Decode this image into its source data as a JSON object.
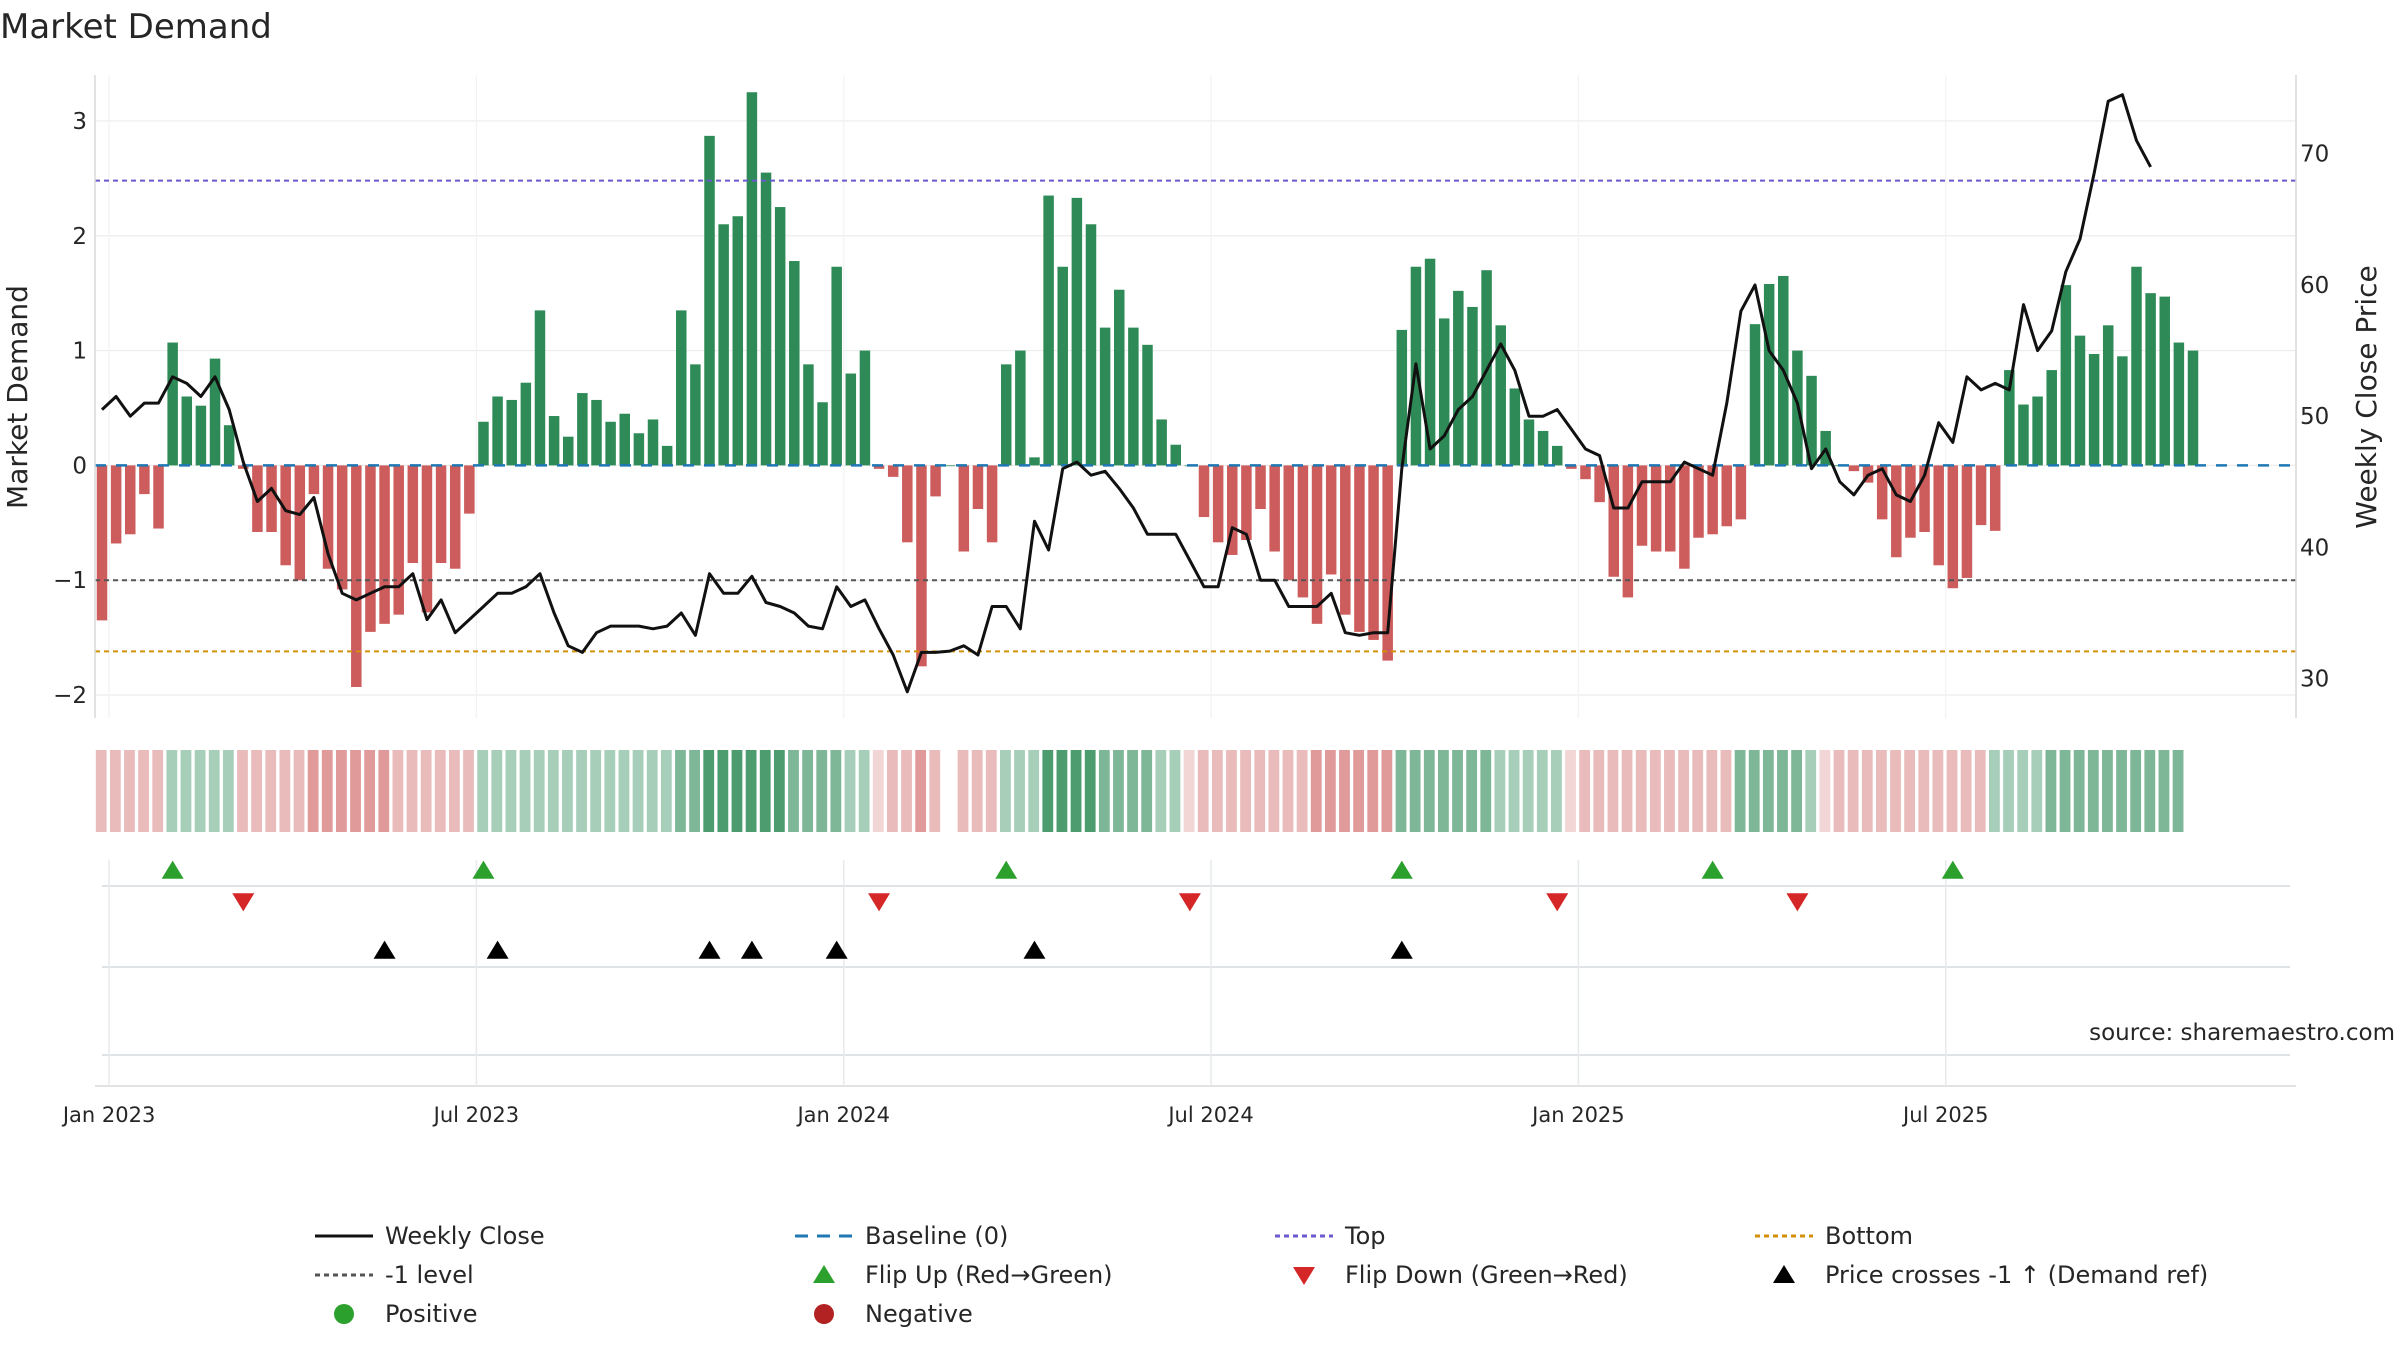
{
  "chart_data": {
    "type": "bar",
    "title": "Market Demand",
    "ylabel_left": "Market Demand",
    "ylabel_right": "Weekly Close Price",
    "ylim_left": [
      -2.2,
      3.4
    ],
    "ylim_right": [
      27,
      76
    ],
    "yticks_left": [
      -2,
      -1,
      0,
      1,
      2,
      3
    ],
    "yticks_right": [
      30,
      40,
      50,
      60,
      70
    ],
    "x_ticks": [
      "Jan 2023",
      "Jul 2023",
      "Jan 2024",
      "Jul 2024",
      "Jan 2025",
      "Jul 2025"
    ],
    "reference_lines": {
      "top": 2.48,
      "minus_one": -1,
      "bottom": -1.62,
      "baseline": 0
    },
    "demand": [
      -1.35,
      -0.68,
      -0.6,
      -0.25,
      -0.55,
      1.07,
      0.6,
      0.52,
      0.93,
      0.35,
      -0.03,
      -0.58,
      -0.58,
      -0.87,
      -1.0,
      -0.25,
      -0.9,
      -1.08,
      -1.93,
      -1.45,
      -1.38,
      -1.3,
      -0.85,
      -1.28,
      -0.85,
      -0.9,
      -0.42,
      0.38,
      0.6,
      0.57,
      0.72,
      1.35,
      0.43,
      0.25,
      0.63,
      0.57,
      0.38,
      0.45,
      0.28,
      0.4,
      0.17,
      1.35,
      0.88,
      2.87,
      2.1,
      2.17,
      3.25,
      2.55,
      2.25,
      1.78,
      0.88,
      0.55,
      1.73,
      0.8,
      1.0,
      -0.03,
      -0.1,
      -0.67,
      -1.75,
      -0.27,
      0.0,
      -0.75,
      -0.38,
      -0.67,
      0.88,
      1.0,
      0.07,
      2.35,
      1.73,
      2.33,
      2.1,
      1.2,
      1.53,
      1.2,
      1.05,
      0.4,
      0.18,
      0.0,
      -0.45,
      -0.67,
      -0.78,
      -0.65,
      -0.38,
      -0.75,
      -1.0,
      -1.15,
      -1.38,
      -0.95,
      -1.3,
      -1.45,
      -1.52,
      -1.7,
      1.18,
      1.73,
      1.8,
      1.28,
      1.52,
      1.38,
      1.7,
      1.22,
      0.67,
      0.4,
      0.3,
      0.17,
      -0.03,
      -0.12,
      -0.32,
      -0.97,
      -1.15,
      -0.7,
      -0.75,
      -0.75,
      -0.9,
      -0.63,
      -0.6,
      -0.53,
      -0.47,
      1.23,
      1.58,
      1.65,
      1.0,
      0.78,
      0.3,
      0.0,
      -0.05,
      -0.15,
      -0.47,
      -0.8,
      -0.63,
      -0.58,
      -0.87,
      -1.07,
      -0.98,
      -0.52,
      -0.57,
      0.83,
      0.53,
      0.6,
      0.83,
      1.57,
      1.13,
      0.97,
      1.22,
      0.95,
      1.73,
      1.5,
      1.47,
      1.07,
      1.0
    ],
    "price": [
      50.5,
      51.5,
      50.0,
      51.0,
      51.0,
      53.0,
      52.5,
      51.5,
      53.0,
      50.5,
      46.5,
      43.5,
      44.5,
      42.8,
      42.5,
      43.8,
      39.5,
      36.5,
      36.0,
      36.5,
      37.0,
      37.0,
      38.0,
      34.5,
      36.0,
      33.5,
      34.5,
      35.5,
      36.5,
      36.5,
      37.0,
      38.0,
      35.0,
      32.5,
      32.0,
      33.5,
      34.0,
      34.0,
      34.0,
      33.8,
      34.0,
      35.0,
      33.3,
      38.0,
      36.5,
      36.5,
      37.8,
      35.8,
      35.5,
      35.0,
      34.0,
      33.8,
      37.0,
      35.5,
      36.0,
      33.8,
      31.8,
      29.0,
      32.0,
      32.0,
      32.1,
      32.5,
      31.8,
      35.5,
      35.5,
      33.8,
      42.0,
      39.8,
      46.0,
      46.5,
      45.5,
      45.8,
      44.5,
      43.0,
      41.0,
      41.0,
      41.0,
      39.0,
      37.0,
      37.0,
      41.5,
      41.0,
      37.5,
      37.5,
      35.5,
      35.5,
      35.5,
      36.5,
      33.5,
      33.3,
      33.5,
      33.5,
      46.0,
      54.0,
      47.5,
      48.5,
      50.5,
      51.5,
      53.5,
      55.5,
      53.5,
      50.0,
      50.0,
      50.5,
      49.0,
      47.5,
      47.0,
      43.0,
      43.0,
      45.0,
      45.0,
      45.0,
      46.5,
      46.0,
      45.5,
      51.0,
      58.0,
      60.0,
      55.0,
      53.5,
      51.0,
      46.0,
      47.5,
      45.0,
      44.0,
      45.5,
      46.0,
      44.0,
      43.5,
      45.5,
      49.5,
      48.0,
      53.0,
      52.0,
      52.5,
      52.0,
      58.5,
      55.0,
      56.5,
      61.0,
      63.5,
      68.5,
      74.0,
      74.5,
      71.0,
      69.0
    ],
    "heat_strip": [
      -1,
      -1,
      -1,
      -1,
      -1,
      1,
      1,
      1,
      1,
      1,
      -1,
      -1,
      -1,
      -1,
      -1,
      -2,
      -2,
      -2,
      -2,
      -2,
      -2,
      -1,
      -1,
      -1,
      -1,
      -1,
      -1,
      1,
      1,
      1,
      1,
      1,
      1,
      1,
      1,
      1,
      1,
      1,
      1,
      1,
      1,
      2,
      2,
      3,
      3,
      3,
      3,
      3,
      3,
      2,
      2,
      2,
      2,
      1,
      1,
      0,
      -1,
      -1,
      -2,
      -1,
      null,
      -1,
      -1,
      -1,
      1,
      1,
      1,
      3,
      3,
      3,
      3,
      2,
      2,
      2,
      2,
      1,
      1,
      0,
      -1,
      -1,
      -1,
      -1,
      -1,
      -1,
      -1,
      -1,
      -2,
      -2,
      -2,
      -2,
      -2,
      -2,
      2,
      2,
      2,
      2,
      2,
      2,
      2,
      1,
      1,
      1,
      1,
      1,
      0,
      -1,
      -1,
      -1,
      -1,
      -1,
      -1,
      -1,
      -1,
      -1,
      -1,
      -1,
      2,
      2,
      2,
      2,
      2,
      1,
      0,
      -1,
      -1,
      -1,
      -1,
      -1,
      -1,
      -1,
      -1,
      -1,
      -1,
      -1,
      1,
      1,
      1,
      1,
      2,
      2,
      2,
      2,
      2,
      2,
      2,
      2,
      2,
      2
    ],
    "flip_up_weeks": [
      5,
      27,
      64,
      92,
      114,
      131
    ],
    "flip_down_weeks": [
      10,
      55,
      77,
      103,
      120
    ],
    "price_cross_weeks": [
      20,
      28,
      43,
      46,
      52,
      66,
      92
    ],
    "legend": [
      "Weekly Close",
      "Baseline (0)",
      "Top",
      "Bottom",
      "-1 level",
      "Flip Up (Red→Green)",
      "Flip Down (Green→Red)",
      "Price crosses -1 ↑ (Demand ref)",
      "Positive",
      "Negative"
    ],
    "source": "source: sharemaestro.com",
    "colors": {
      "positive": "#2e8b57",
      "negative": "#cd5c5c",
      "price": "#111111",
      "baseline": "#1f77b4",
      "top": "#6a5acd",
      "minus_one": "#555555",
      "bottom": "#d4900a",
      "flip_up": "#2ca02c",
      "flip_down": "#d62728",
      "cross": "#000000",
      "positive_dot": "#2ca02c",
      "negative_dot": "#b22222"
    }
  }
}
